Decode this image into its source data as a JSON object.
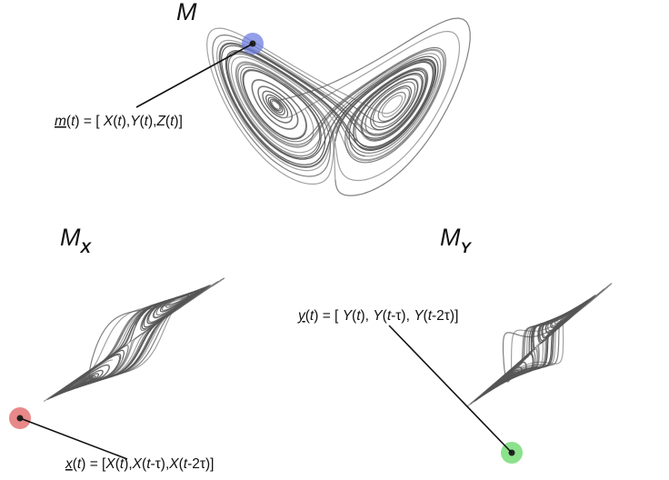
{
  "titles": {
    "m": {
      "main": "M",
      "sub": ""
    },
    "mx": {
      "main": "M",
      "sub": "X"
    },
    "my": {
      "main": "M",
      "sub": "Y"
    }
  },
  "equations": {
    "m": [
      "m",
      "(",
      "t",
      ") = [ ",
      "X",
      "(",
      "t",
      "),",
      "Y",
      "(",
      "t",
      "),",
      "Z",
      "(",
      "t",
      ")]"
    ],
    "x": [
      "x",
      "(",
      "t",
      ") = [",
      "X",
      "(",
      "t",
      "),",
      "X",
      "(",
      "t",
      "-τ),",
      "X",
      "(",
      "t",
      "-2τ)]"
    ],
    "y": [
      "y",
      "(",
      "t",
      ") = [ ",
      "Y",
      "(",
      "t",
      "), ",
      "Y",
      "(",
      "t",
      "-τ), ",
      "Y",
      "(",
      "t",
      "-2τ)]"
    ]
  },
  "colors": {
    "trajectory": "#555555",
    "point_m": "#6f7fe0",
    "point_x": "#e06060",
    "point_y": "#6fd96f"
  }
}
